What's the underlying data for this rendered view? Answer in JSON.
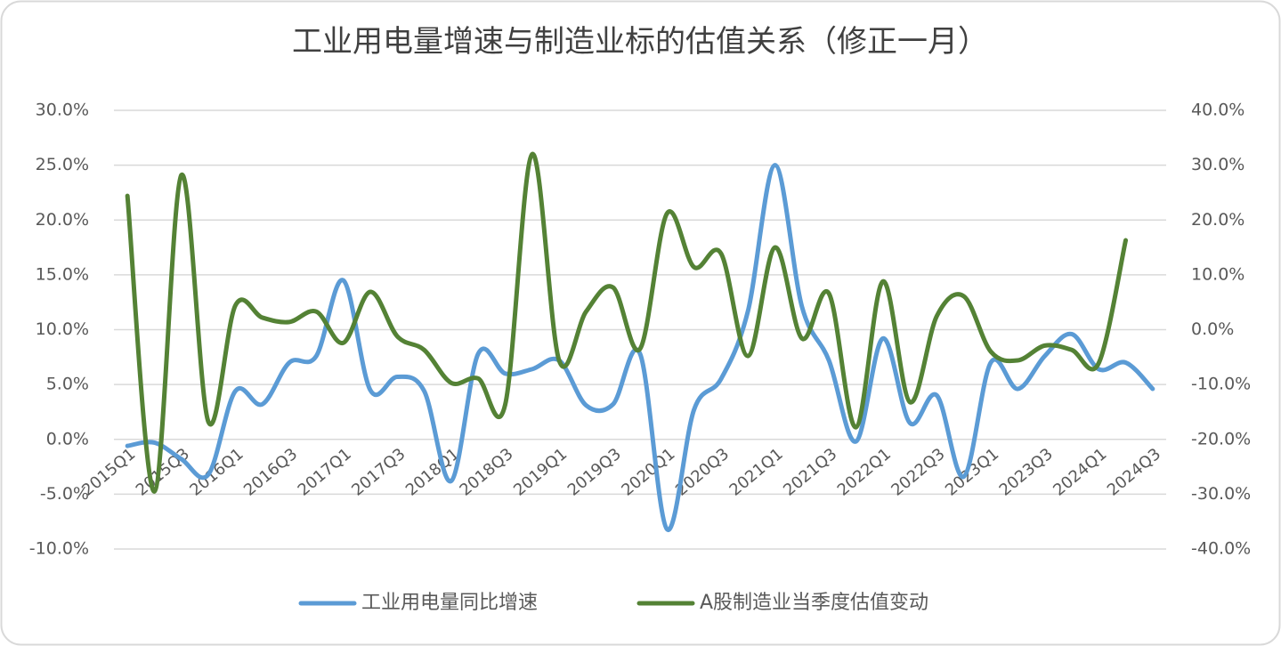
{
  "chart_data": {
    "type": "line",
    "title": "工业用电量增速与制造业标的估值关系（修正一月）",
    "categories": [
      "2015Q1",
      null,
      "2015Q3",
      null,
      "2016Q1",
      null,
      "2016Q3",
      null,
      "2017Q1",
      null,
      "2017Q3",
      null,
      "2018Q1",
      null,
      "2018Q3",
      null,
      "2019Q1",
      null,
      "2019Q3",
      null,
      "2020Q1",
      null,
      "2020Q3",
      null,
      "2021Q1",
      null,
      "2021Q3",
      null,
      "2022Q1",
      null,
      "2022Q3",
      null,
      "2023Q1",
      null,
      "2023Q3",
      null,
      "2024Q1",
      null,
      "2024Q3"
    ],
    "series": [
      {
        "name": "工业用电量同比增速",
        "color": "#5b9bd5",
        "axis": "y",
        "values": [
          -0.6,
          -0.3,
          -1.8,
          -3.2,
          4.4,
          3.2,
          7.0,
          7.6,
          14.5,
          4.5,
          5.7,
          4.4,
          -3.8,
          7.8,
          6.0,
          6.4,
          7.2,
          3.1,
          3.2,
          7.8,
          -8.2,
          2.7,
          5.5,
          11.7,
          25.0,
          12.1,
          7.2,
          -0.2,
          9.2,
          1.5,
          4.0,
          -3.4,
          7.0,
          4.6,
          7.6,
          9.6,
          6.4,
          7.0,
          4.6
        ]
      },
      {
        "name": "A股制造业当季度估值变动",
        "color": "#548235",
        "axis": "y2",
        "values": [
          24.4,
          -29.5,
          28.2,
          -16.8,
          4.4,
          2.2,
          1.4,
          3.3,
          -2.4,
          6.9,
          -1.2,
          -3.7,
          -9.7,
          -8.9,
          -13.7,
          32.0,
          -5.6,
          3.3,
          7.7,
          -3.5,
          21.2,
          11.4,
          13.9,
          -4.8,
          15.0,
          -1.6,
          6.6,
          -17.8,
          8.8,
          -13.2,
          2.5,
          6.1,
          -4.0,
          -5.6,
          -2.9,
          -3.7,
          -6.1,
          16.3,
          null
        ]
      }
    ],
    "ylim": [
      -10,
      30
    ],
    "yticks": [
      {
        "value": -10,
        "label": "-10.0%"
      },
      {
        "value": -5,
        "label": "-5.0%"
      },
      {
        "value": 0,
        "label": "0.0%"
      },
      {
        "value": 5,
        "label": "5.0%"
      },
      {
        "value": 10,
        "label": "10.0%"
      },
      {
        "value": 15,
        "label": "15.0%"
      },
      {
        "value": 20,
        "label": "20.0%"
      },
      {
        "value": 25,
        "label": "25.0%"
      },
      {
        "value": 30,
        "label": "30.0%"
      }
    ],
    "y2lim": [
      -40,
      40
    ],
    "y2ticks": [
      {
        "value": -40,
        "label": "-40.0%"
      },
      {
        "value": -30,
        "label": "-30.0%"
      },
      {
        "value": -20,
        "label": "-20.0%"
      },
      {
        "value": -10,
        "label": "-10.0%"
      },
      {
        "value": 0,
        "label": "0.0%"
      },
      {
        "value": 10,
        "label": "10.0%"
      },
      {
        "value": 20,
        "label": "20.0%"
      },
      {
        "value": 30,
        "label": "30.0%"
      },
      {
        "value": 40,
        "label": "40.0%"
      }
    ],
    "grid": true,
    "smooth": true,
    "legend": "bottom"
  }
}
